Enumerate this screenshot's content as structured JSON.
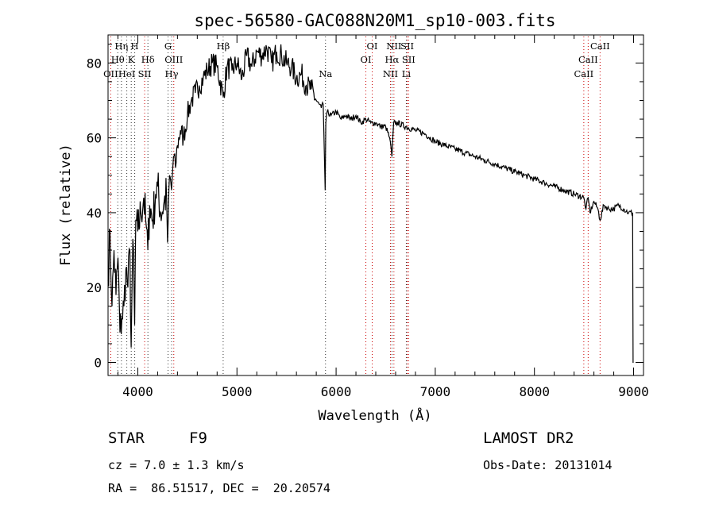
{
  "chart_data": {
    "type": "line",
    "title": "spec-56580-GAC088N20M1_sp10-003.fits",
    "xlabel": "Wavelength (Å)",
    "ylabel": "Flux (relative)",
    "xlim": [
      3700,
      9100
    ],
    "ylim": [
      -3.5,
      87.5
    ],
    "xticks": [
      4000,
      5000,
      6000,
      7000,
      8000,
      9000
    ],
    "yticks": [
      0,
      20,
      40,
      60,
      80
    ],
    "grid": false,
    "series": [
      {
        "x": [
          3700,
          3720,
          3740,
          3760,
          3780,
          3800,
          3820,
          3840,
          3860,
          3880,
          3900,
          3920,
          3933,
          3950,
          3968,
          3980,
          4000,
          4030,
          4060,
          4080,
          4101,
          4120,
          4150,
          4180,
          4200,
          4230,
          4260,
          4290,
          4300,
          4320,
          4340,
          4360,
          4380,
          4400,
          4430,
          4460,
          4500,
          4540,
          4580,
          4620,
          4660,
          4700,
          4750,
          4800,
          4861,
          4900,
          4950,
          5000,
          5050,
          5100,
          5150,
          5200,
          5250,
          5300,
          5350,
          5400,
          5450,
          5500,
          5550,
          5600,
          5650,
          5700,
          5750,
          5800,
          5850,
          5870,
          5890,
          5896,
          5910,
          5950,
          6000,
          6050,
          6100,
          6150,
          6200,
          6250,
          6300,
          6350,
          6400,
          6450,
          6500,
          6540,
          6563,
          6580,
          6620,
          6700,
          6800,
          6900,
          7000,
          7100,
          7200,
          7300,
          7400,
          7500,
          7600,
          7700,
          7800,
          7900,
          8000,
          8100,
          8200,
          8300,
          8400,
          8498,
          8520,
          8542,
          8560,
          8600,
          8640,
          8662,
          8700,
          8750,
          8800,
          8850,
          8900,
          8950,
          8990,
          8995,
          9000
        ],
        "y": [
          22,
          35,
          15,
          30,
          18,
          28,
          8,
          12,
          15,
          25,
          20,
          30,
          4,
          33,
          10,
          38,
          35,
          40,
          44,
          38,
          30,
          42,
          38,
          45,
          47,
          40,
          42,
          45,
          32,
          50,
          46,
          55,
          52,
          58,
          62,
          60,
          66,
          70,
          72,
          74,
          76,
          78,
          80,
          79,
          71,
          79,
          78,
          80,
          76,
          82,
          79,
          83,
          82,
          84,
          80,
          83,
          82,
          80,
          79,
          76,
          77,
          74,
          73,
          70,
          68,
          69,
          46,
          64,
          67,
          66,
          67,
          65,
          66,
          65,
          66,
          64,
          65,
          64,
          64,
          63,
          63,
          60,
          55,
          64,
          64,
          63,
          62,
          61,
          59,
          58,
          57,
          56,
          55,
          54,
          53,
          52,
          51,
          50,
          49,
          48,
          47,
          46,
          45,
          44,
          41,
          44,
          40,
          43,
          41,
          38,
          42,
          41,
          41,
          42,
          41,
          40,
          40,
          0,
          0
        ]
      }
    ],
    "line_labels": [
      {
        "text": "OII",
        "x": 3727,
        "row": 3,
        "color": "#cc0000"
      },
      {
        "text": "Hη",
        "x": 3835,
        "row": 1,
        "color": "#333333"
      },
      {
        "text": "Hθ",
        "x": 3798,
        "row": 2,
        "color": "#333333"
      },
      {
        "text": "HeI",
        "x": 3889,
        "row": 3,
        "color": "#333333"
      },
      {
        "text": "K",
        "x": 3934,
        "row": 2,
        "color": "#333333"
      },
      {
        "text": "H",
        "x": 3969,
        "row": 1,
        "color": "#333333"
      },
      {
        "text": "SII",
        "x": 4069,
        "row": 3,
        "color": "#cc0000"
      },
      {
        "text": "Hδ",
        "x": 4102,
        "row": 2,
        "color": "#333333"
      },
      {
        "text": "G",
        "x": 4305,
        "row": 1,
        "color": "#333333"
      },
      {
        "text": "OIII",
        "x": 4363,
        "row": 2,
        "color": "#cc0000"
      },
      {
        "text": "Hγ",
        "x": 4341,
        "row": 3,
        "color": "#333333"
      },
      {
        "text": "Hβ",
        "x": 4861,
        "row": 1,
        "color": "#333333"
      },
      {
        "text": "Na",
        "x": 5893,
        "row": 3,
        "color": "#333333"
      },
      {
        "text": "OI",
        "x": 6300,
        "row": 2,
        "color": "#cc0000"
      },
      {
        "text": "OI",
        "x": 6364,
        "row": 1,
        "color": "#cc0000"
      },
      {
        "text": "NII",
        "x": 6548,
        "row": 3,
        "color": "#cc0000"
      },
      {
        "text": "Hα",
        "x": 6563,
        "row": 2,
        "color": "#333333"
      },
      {
        "text": "NII",
        "x": 6583,
        "row": 1,
        "color": "#cc0000"
      },
      {
        "text": "Li",
        "x": 6708,
        "row": 3,
        "color": "#333333"
      },
      {
        "text": "SII",
        "x": 6731,
        "row": 2,
        "color": "#cc0000"
      },
      {
        "text": "SII",
        "x": 6717,
        "row": 1,
        "color": "#cc0000"
      },
      {
        "text": "CaII",
        "x": 8498,
        "row": 3,
        "color": "#cc0000"
      },
      {
        "text": "CaII",
        "x": 8542,
        "row": 2,
        "color": "#cc0000"
      },
      {
        "text": "CaII",
        "x": 8662,
        "row": 1,
        "color": "#cc0000"
      }
    ]
  },
  "info": {
    "object_type": "STAR",
    "subclass": "F9",
    "survey": "LAMOST DR2",
    "cz": "cz = 7.0 ± 1.3 km/s",
    "obs_date": "Obs-Date: 20131014",
    "coords": "RA =  86.51517, DEC =  20.20574"
  }
}
